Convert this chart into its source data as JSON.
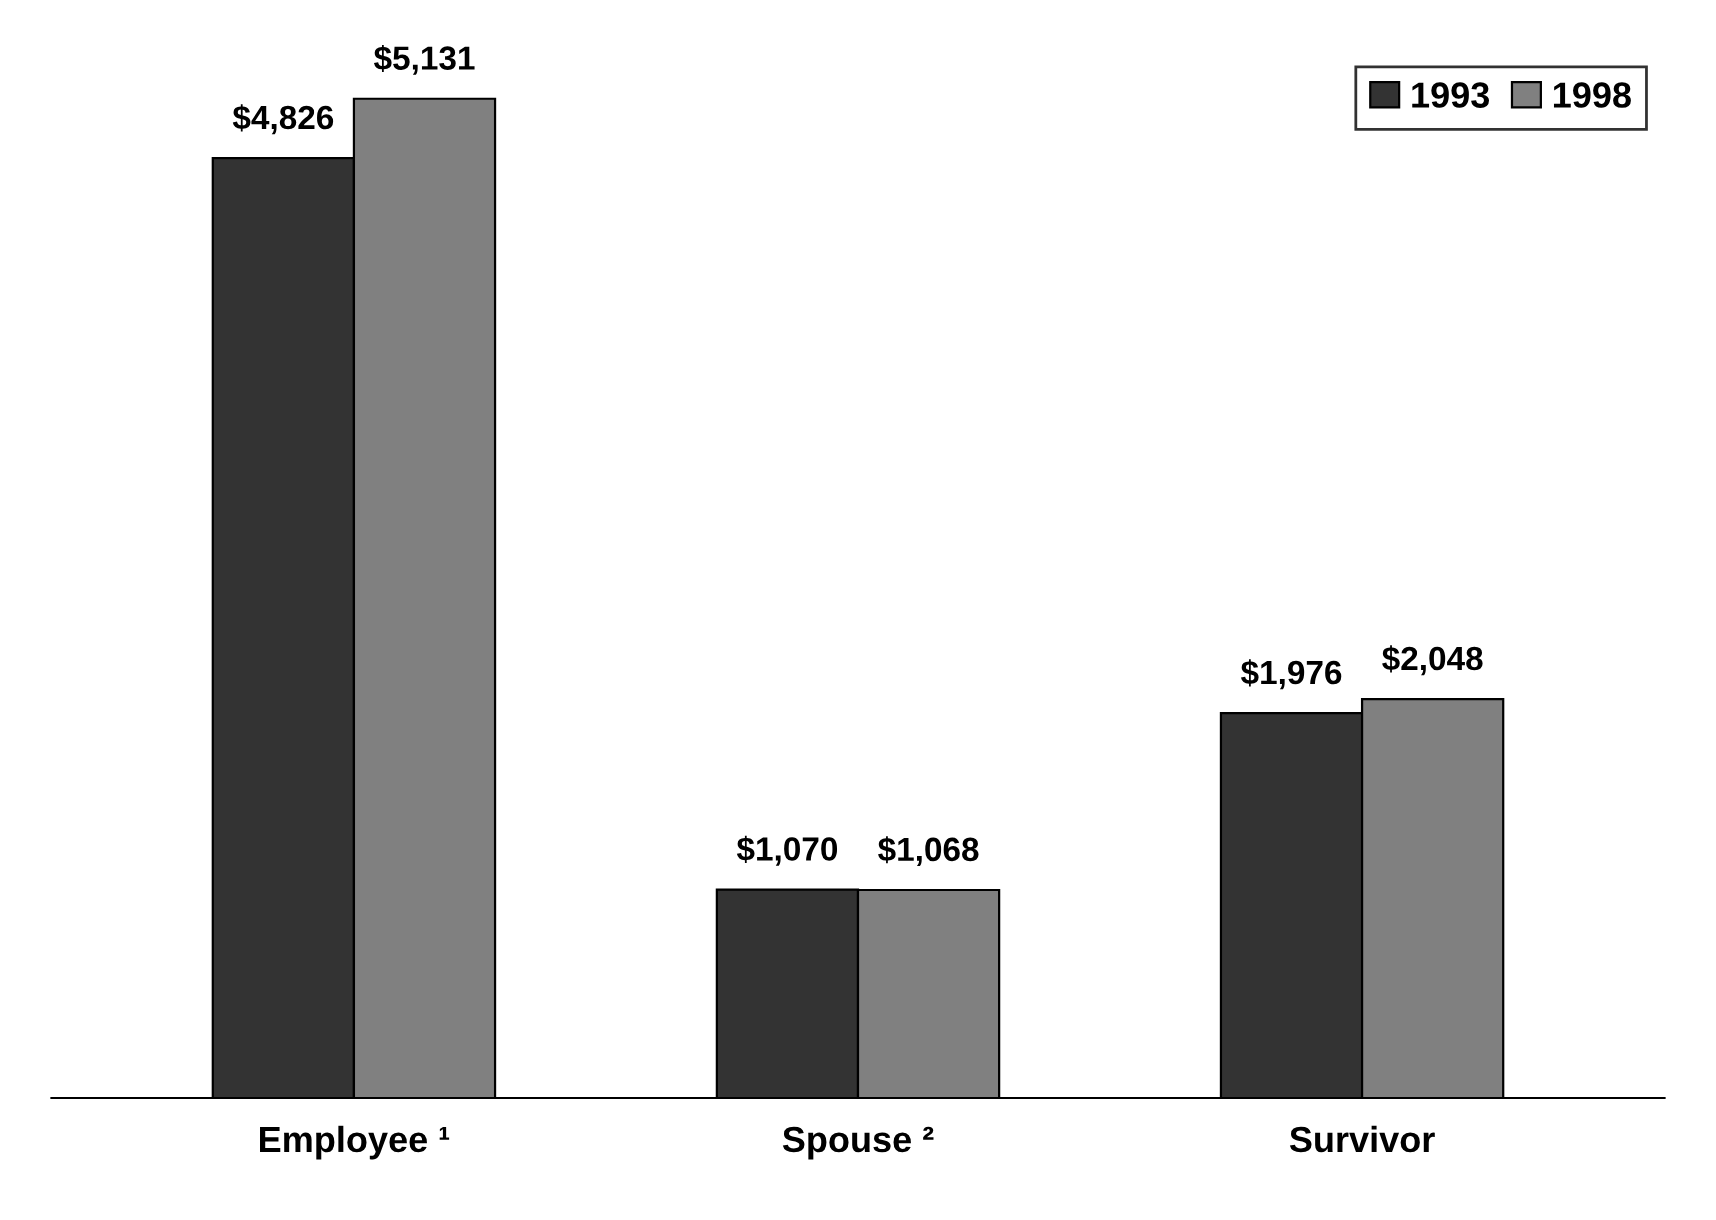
{
  "chart_data": {
    "type": "bar",
    "categories": [
      "Employee ¹",
      "Spouse ²",
      "Survivor"
    ],
    "series": [
      {
        "name": "1993",
        "color": "#333333",
        "values": [
          4826,
          1070,
          1976
        ],
        "value_labels": [
          "$4,826",
          "$1,070",
          "$1,976"
        ]
      },
      {
        "name": "1998",
        "color": "#808080",
        "values": [
          5131,
          1068,
          2048
        ],
        "value_labels": [
          "$5,131",
          "$1,068",
          "$2,048"
        ]
      }
    ],
    "legend": "top right"
  }
}
